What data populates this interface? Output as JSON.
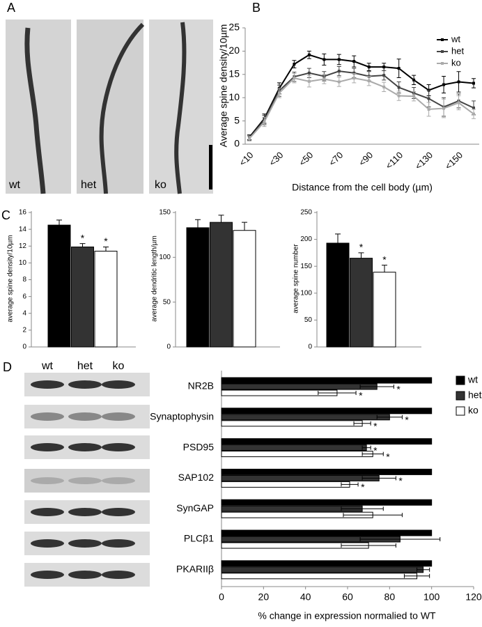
{
  "panel_labels": [
    "A",
    "B",
    "C",
    "D"
  ],
  "micrographs": {
    "labels": [
      "wt",
      "het",
      "ko"
    ]
  },
  "blot": {
    "labels": [
      "wt",
      "het",
      "ko"
    ]
  },
  "chart_data": [
    {
      "type": "line",
      "ylabel": "Average spine density/10µm",
      "xlabel": "Distance from the cell body (µm)",
      "categories": [
        "<10",
        null,
        "<30",
        null,
        "<50",
        null,
        "<70",
        null,
        "<90",
        null,
        "<110",
        null,
        "<130",
        null,
        "<150",
        null
      ],
      "ylim": [
        0,
        25
      ],
      "yticks": [
        0,
        5,
        10,
        15,
        20,
        25
      ],
      "legend": "upper right",
      "series": [
        {
          "name": "wt",
          "color": "#000000",
          "values": [
            1.5,
            5.5,
            12.0,
            17.2,
            19.2,
            18.2,
            18.2,
            17.8,
            16.6,
            16.6,
            16.3,
            13.8,
            11.6,
            12.8,
            13.4,
            13.1
          ],
          "errors": [
            0.5,
            1.0,
            1.2,
            0.8,
            0.8,
            1.2,
            1.1,
            1.2,
            0.8,
            0.8,
            2.0,
            1.0,
            1.2,
            1.8,
            2.2,
            1.0
          ]
        },
        {
          "name": "het",
          "color": "#444444",
          "values": [
            1.3,
            5.2,
            11.5,
            14.5,
            15.3,
            14.6,
            15.7,
            15.3,
            14.6,
            14.8,
            12.2,
            11.0,
            9.8,
            8.0,
            9.3,
            7.8
          ],
          "errors": [
            0.5,
            1.0,
            1.2,
            1.0,
            1.0,
            1.0,
            1.0,
            1.0,
            1.0,
            1.0,
            1.2,
            1.2,
            1.8,
            2.0,
            1.5,
            1.5
          ]
        },
        {
          "name": "ko",
          "color": "#aaaaaa",
          "values": [
            1.2,
            4.8,
            11.0,
            14.2,
            13.5,
            14.0,
            13.4,
            14.2,
            13.6,
            12.3,
            10.4,
            10.3,
            7.5,
            7.7,
            8.9,
            6.5
          ],
          "errors": [
            0.5,
            1.0,
            1.0,
            1.0,
            1.2,
            1.0,
            1.0,
            1.0,
            1.0,
            1.0,
            1.0,
            1.0,
            1.5,
            2.0,
            1.5,
            1.0
          ]
        }
      ]
    },
    {
      "type": "bar",
      "ylabel": "average spine density/10µm",
      "categories": [
        null,
        null,
        null
      ],
      "values": [
        14.5,
        11.9,
        11.4
      ],
      "errors": [
        0.6,
        0.4,
        0.5
      ],
      "stars": [
        null,
        "*",
        "*"
      ],
      "colors": [
        "#000000",
        "#333333",
        "#ffffff"
      ],
      "ylim": [
        0,
        16
      ],
      "yticks": [
        0,
        2,
        4,
        6,
        8,
        10,
        12,
        14,
        16
      ]
    },
    {
      "type": "bar",
      "ylabel": "average dendritic length/µm",
      "categories": [
        null,
        null,
        null
      ],
      "values": [
        133,
        139,
        130
      ],
      "errors": [
        9,
        8,
        9
      ],
      "colors": [
        "#000000",
        "#333333",
        "#ffffff"
      ],
      "ylim": [
        0,
        150
      ],
      "yticks": [
        0,
        50,
        100,
        150
      ]
    },
    {
      "type": "bar",
      "ylabel": "average spine number",
      "categories": [
        null,
        null,
        null
      ],
      "values": [
        193,
        165,
        139
      ],
      "errors": [
        17,
        10,
        13
      ],
      "stars": [
        null,
        "*",
        "*"
      ],
      "colors": [
        "#000000",
        "#333333",
        "#ffffff"
      ],
      "ylim": [
        0,
        250
      ],
      "yticks": [
        0,
        50,
        100,
        150,
        200,
        250
      ]
    },
    {
      "type": "barh",
      "xlabel": "% change in expression normalied to WT",
      "categories": [
        "NR2B",
        "Synaptophysin",
        "PSD95",
        "SAP102",
        "SynGAP",
        "PLCβ1",
        "PKARIIβ"
      ],
      "xlim": [
        0,
        120
      ],
      "xticks": [
        0,
        20,
        40,
        60,
        80,
        100,
        120
      ],
      "legend": "upper right",
      "series": [
        {
          "name": "wt",
          "color": "#000000",
          "values": [
            100,
            100,
            100,
            100,
            100,
            100,
            100
          ]
        },
        {
          "name": "het",
          "color": "#333333",
          "values": [
            74,
            80,
            69,
            75,
            67,
            85,
            96
          ],
          "errors": [
            8,
            6,
            2,
            8,
            10,
            19,
            3
          ],
          "stars": [
            "*",
            "*",
            "*",
            "*",
            null,
            null,
            null
          ]
        },
        {
          "name": "ko",
          "color": "#ffffff",
          "values": [
            55,
            67,
            72,
            61,
            72,
            70,
            93
          ],
          "errors": [
            9,
            4,
            5,
            4,
            14,
            13,
            6
          ],
          "stars": [
            "*",
            "*",
            "*",
            "*",
            null,
            null,
            null
          ]
        }
      ]
    }
  ]
}
